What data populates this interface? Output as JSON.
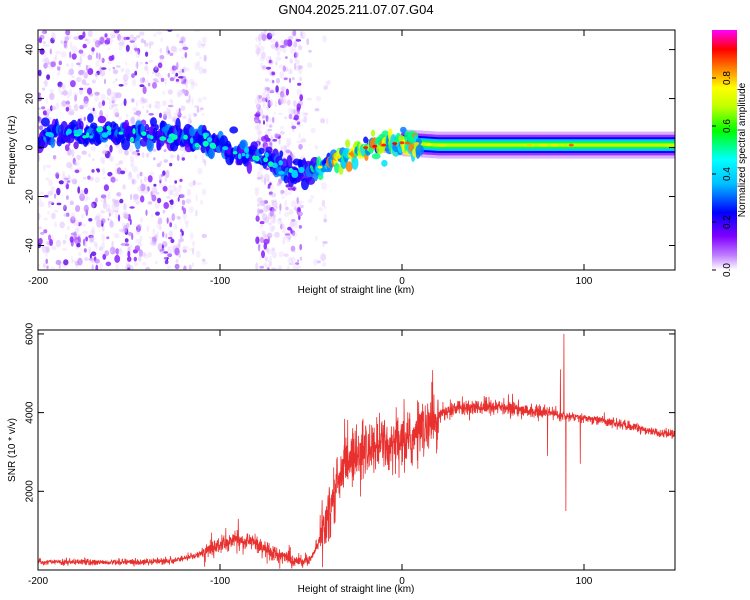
{
  "figure": {
    "title": "GN04.2025.211.07.07.G04"
  },
  "chart_data": [
    {
      "type": "heatmap",
      "xlabel": "Height of straight line (km)",
      "ylabel": "Frequency (Hz)",
      "xlim": [
        -200,
        150
      ],
      "ylim": [
        -50,
        48
      ],
      "x_ticks": [
        -200,
        -100,
        0,
        100
      ],
      "y_ticks": [
        -40,
        -20,
        0,
        20,
        40
      ],
      "colorbar": {
        "label": "Normalized spectral amplitude",
        "range": [
          0,
          1
        ],
        "ticks": [
          0.0,
          0.2,
          0.4,
          0.6,
          0.8
        ],
        "colormap": [
          "#f0d8ff",
          "#8000ff",
          "#0000ff",
          "#00ffff",
          "#00ff00",
          "#ffff00",
          "#ff8000",
          "#ff0000",
          "#ff00ff"
        ]
      },
      "ridge": {
        "x": [
          -200,
          -180,
          -160,
          -140,
          -130,
          -120,
          -110,
          -100,
          -90,
          -80,
          -70,
          -60,
          -50,
          -45,
          -40,
          -35,
          -30,
          -25,
          -20,
          -10,
          0,
          10,
          20,
          50,
          100,
          150
        ],
        "y": [
          5,
          6,
          6,
          5,
          5,
          4,
          3,
          1,
          -2,
          -4,
          -7,
          -10,
          -9,
          -8,
          -6,
          -4,
          -3,
          -2,
          0,
          1,
          2,
          1.5,
          1,
          1,
          1,
          1
        ]
      }
    },
    {
      "type": "line",
      "xlabel": "Height of straight line (km)",
      "ylabel": "SNR (10 * v/v)",
      "xlim": [
        -200,
        150
      ],
      "ylim": [
        0,
        6100
      ],
      "x_ticks": [
        -200,
        -100,
        0,
        100
      ],
      "y_ticks": [
        2000,
        4000,
        6000
      ],
      "color": "#e8302e",
      "series": [
        {
          "x": [
            -200,
            -180,
            -160,
            -140,
            -125,
            -110,
            -100,
            -90,
            -80,
            -70,
            -60,
            -55,
            -50,
            -45,
            -40,
            -35,
            -30,
            -25,
            -20,
            -15,
            -10,
            -5,
            0,
            5,
            10,
            15,
            20,
            30,
            40,
            50,
            60,
            70,
            80,
            85,
            90,
            95,
            100,
            110,
            120,
            130,
            140,
            150
          ],
          "values": [
            200,
            200,
            200,
            200,
            250,
            400,
            650,
            750,
            700,
            400,
            250,
            200,
            300,
            800,
            1500,
            2300,
            2700,
            2900,
            3000,
            3100,
            3150,
            3200,
            3200,
            3300,
            3500,
            3700,
            3950,
            4100,
            4150,
            4150,
            4100,
            4050,
            4000,
            3950,
            3900,
            3900,
            3850,
            3800,
            3700,
            3600,
            3500,
            3450
          ]
        }
      ],
      "spikes": [
        {
          "x": 89,
          "value": 6000
        },
        {
          "x": 87,
          "value": 5100
        },
        {
          "x": 90,
          "value": 1500
        },
        {
          "x": 80,
          "value": 2900
        },
        {
          "x": 98,
          "value": 2700
        },
        {
          "x": -90,
          "value": 1300
        },
        {
          "x": -25,
          "value": 3700
        }
      ]
    }
  ]
}
